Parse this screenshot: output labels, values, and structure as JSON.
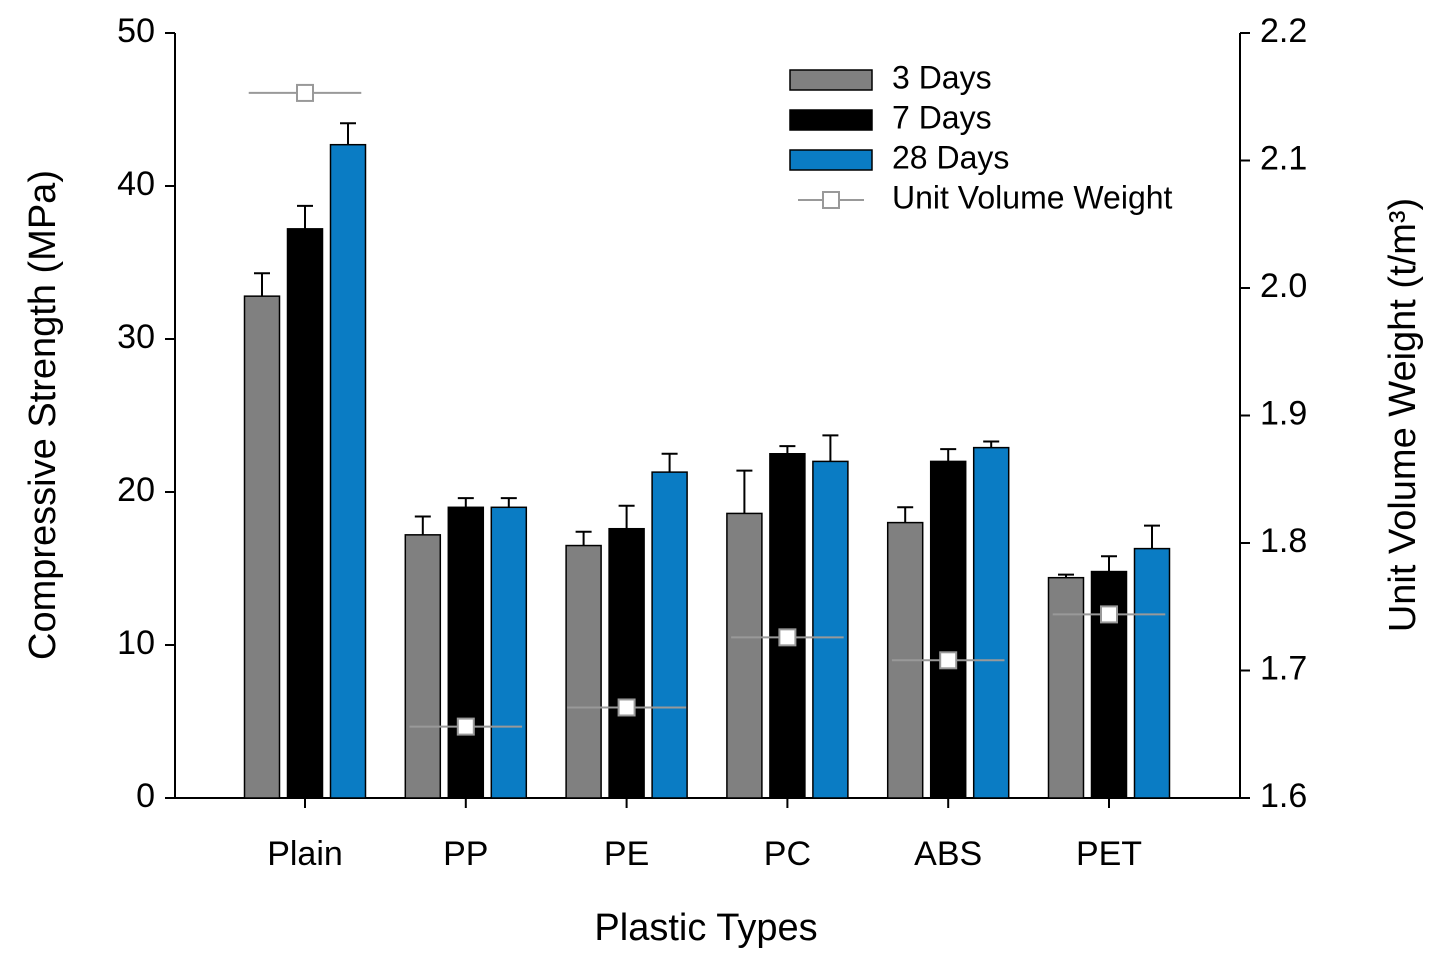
{
  "chart_data": {
    "type": "bar",
    "xlabel": "Plastic Types",
    "ylabel": "Compressive Strength (MPa)",
    "y2label": "Unit Volume Weight (t/m³)",
    "categories": [
      "Plain",
      "PP",
      "PE",
      "PC",
      "ABS",
      "PET"
    ],
    "series": [
      {
        "name": "3 Days",
        "color": "#808080",
        "values": [
          32.8,
          17.2,
          16.5,
          18.6,
          18.0,
          14.4
        ],
        "errors": [
          1.5,
          1.2,
          0.9,
          2.8,
          1.0,
          0.2
        ]
      },
      {
        "name": "7 Days",
        "color": "#000000",
        "values": [
          37.2,
          19.0,
          17.6,
          22.5,
          22.0,
          14.8
        ],
        "errors": [
          1.5,
          0.6,
          1.5,
          0.5,
          0.8,
          1.0
        ]
      },
      {
        "name": "28 Days",
        "color": "#0a7cc4",
        "values": [
          42.7,
          19.0,
          21.3,
          22.0,
          22.9,
          16.3
        ],
        "errors": [
          1.4,
          0.6,
          1.2,
          1.7,
          0.4,
          1.5
        ]
      },
      {
        "name": "Unit Volume Weight",
        "color": "#999999",
        "axis": "y2",
        "values": [
          2.153,
          1.656,
          1.671,
          1.726,
          1.708,
          1.744
        ],
        "xerr": [
          0.35,
          0.35,
          0.37,
          0.35,
          0.35,
          0.35
        ]
      }
    ],
    "ylim": [
      0,
      50
    ],
    "yticks": [
      0,
      10,
      20,
      30,
      40,
      50
    ],
    "y2lim": [
      1.6,
      2.2
    ],
    "y2ticks": [
      1.6,
      1.7,
      1.8,
      1.9,
      {
        "value": 2,
        "label": "2.0"
      },
      2.1,
      2.2
    ],
    "legend": "upper-right"
  }
}
